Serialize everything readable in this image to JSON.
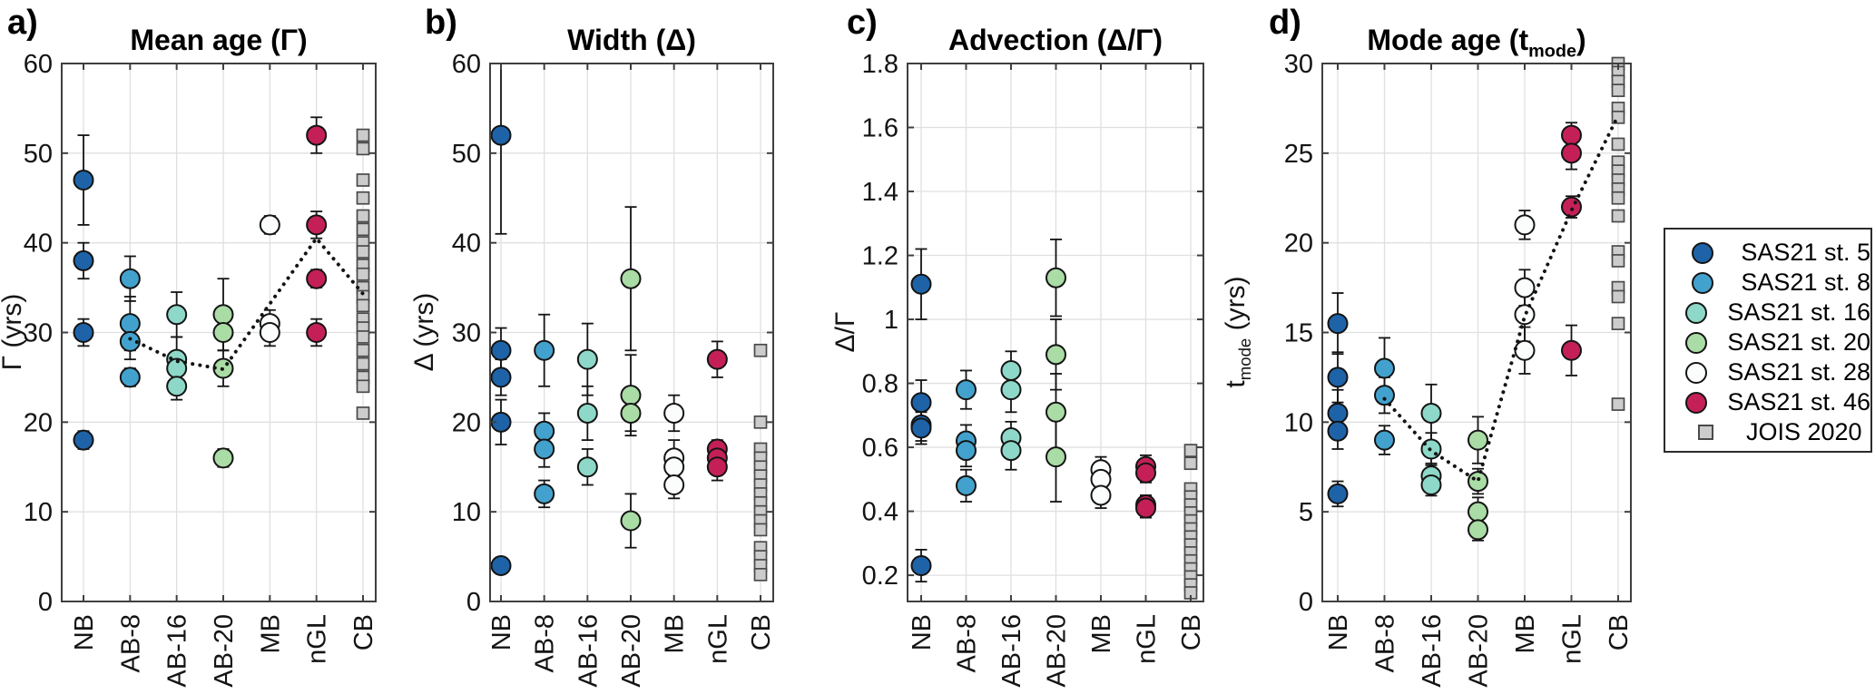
{
  "figure_colors": {
    "background": "#ffffff",
    "axis": "#3f3f3f",
    "grid": "#e0e0e0",
    "marker_edge": "#141414",
    "square_edge": "#4a4a4a",
    "trend": "#141414",
    "tick_text": "#141414"
  },
  "legend": {
    "items": [
      {
        "label": "SAS21 st. 5",
        "marker": "circle",
        "color": "#1e63a8"
      },
      {
        "label": "SAS21 st. 8",
        "marker": "circle",
        "color": "#43a2cd"
      },
      {
        "label": "SAS21 st. 16",
        "marker": "circle",
        "color": "#8dd8c8"
      },
      {
        "label": "SAS21 st. 20",
        "marker": "circle",
        "color": "#aadca5"
      },
      {
        "label": "SAS21 st. 28",
        "marker": "circle",
        "color": "#fbfdfd"
      },
      {
        "label": "SAS21 st. 46",
        "marker": "circle",
        "color": "#c42057"
      },
      {
        "label": "JOIS 2020",
        "marker": "square",
        "color": "#cccccc"
      }
    ]
  },
  "chart_data": [
    {
      "panel": "a",
      "letter": "a)",
      "type": "scatter",
      "title": {
        "pre": "Mean age (Γ)",
        "sub": "",
        "post": ""
      },
      "ylabel": {
        "pre": "Γ (yrs)",
        "sub": "",
        "post": ""
      },
      "ylim": [
        0,
        60
      ],
      "yticks": [
        {
          "v": 0,
          "label": "0"
        },
        {
          "v": 10,
          "label": "10"
        },
        {
          "v": 20,
          "label": "20"
        },
        {
          "v": 30,
          "label": "30"
        },
        {
          "v": 40,
          "label": "40"
        },
        {
          "v": 50,
          "label": "50"
        },
        {
          "v": 60,
          "label": "60"
        }
      ],
      "categories": [
        "NB",
        "AB-8",
        "AB-16",
        "AB-20",
        "MB",
        "nGL",
        "CB"
      ],
      "groups": [
        {
          "station": "SAS21 st. 5",
          "category": "NB",
          "values": [
            47,
            38,
            30,
            18
          ],
          "errors": [
            5,
            2,
            1.5,
            1
          ]
        },
        {
          "station": "SAS21 st. 8",
          "category": "AB-8",
          "values": [
            36,
            31,
            29,
            25
          ],
          "errors": [
            2.5,
            3,
            2,
            1
          ]
        },
        {
          "station": "SAS21 st. 16",
          "category": "AB-16",
          "values": [
            32,
            27,
            26,
            24
          ],
          "errors": [
            2.5,
            2.5,
            1.5,
            1.5
          ]
        },
        {
          "station": "SAS21 st. 20",
          "category": "AB-20",
          "values": [
            32,
            30,
            26,
            16
          ],
          "errors": [
            4,
            2,
            2,
            1
          ]
        },
        {
          "station": "SAS21 st. 28",
          "category": "MB",
          "values": [
            42,
            31,
            30
          ],
          "errors": [
            1,
            1.5,
            1.5
          ]
        },
        {
          "station": "SAS21 st. 46",
          "category": "nGL",
          "values": [
            52,
            42,
            36,
            30
          ],
          "errors": [
            2,
            1.5,
            1,
            1.5
          ]
        },
        {
          "station": "JOIS 2020",
          "category": "CB",
          "values": [
            52,
            50.5,
            47,
            45,
            43,
            41.5,
            40,
            39,
            37.5,
            36.5,
            35,
            34,
            33,
            31.5,
            30.5,
            29.5,
            28,
            26.5,
            25,
            24,
            21
          ],
          "errors": null
        }
      ],
      "trend": {
        "categories": [
          "AB-8",
          "AB-16",
          "AB-20",
          "nGL",
          "CB"
        ],
        "values": [
          29.3,
          26.8,
          25.9,
          40.5,
          34.3
        ]
      }
    },
    {
      "panel": "b",
      "letter": "b)",
      "type": "scatter",
      "title": {
        "pre": "Width (Δ)",
        "sub": "",
        "post": ""
      },
      "ylabel": {
        "pre": "Δ (yrs)",
        "sub": "",
        "post": ""
      },
      "ylim": [
        0,
        60
      ],
      "yticks": [
        {
          "v": 0,
          "label": "0"
        },
        {
          "v": 10,
          "label": "10"
        },
        {
          "v": 20,
          "label": "20"
        },
        {
          "v": 30,
          "label": "30"
        },
        {
          "v": 40,
          "label": "40"
        },
        {
          "v": 50,
          "label": "50"
        },
        {
          "v": 60,
          "label": "60"
        }
      ],
      "categories": [
        "NB",
        "AB-8",
        "AB-16",
        "AB-20",
        "MB",
        "nGL",
        "CB"
      ],
      "groups": [
        {
          "station": "SAS21 st. 5",
          "category": "NB",
          "values": [
            52,
            28,
            25,
            20,
            4
          ],
          "errors": [
            11,
            2.5,
            2,
            2.5,
            0.8
          ]
        },
        {
          "station": "SAS21 st. 8",
          "category": "AB-8",
          "values": [
            28,
            19,
            17,
            12
          ],
          "errors": [
            4,
            2,
            2,
            1.5
          ]
        },
        {
          "station": "SAS21 st. 16",
          "category": "AB-16",
          "values": [
            27,
            21,
            15
          ],
          "errors": [
            4,
            3,
            2
          ]
        },
        {
          "station": "SAS21 st. 20",
          "category": "AB-20",
          "values": [
            36,
            23,
            21,
            9
          ],
          "errors": [
            8,
            4.5,
            2,
            3
          ]
        },
        {
          "station": "SAS21 st. 28",
          "category": "MB",
          "values": [
            21,
            16,
            15,
            13
          ],
          "errors": [
            2,
            2,
            1,
            1.5
          ]
        },
        {
          "station": "SAS21 st. 46",
          "category": "nGL",
          "values": [
            27,
            17,
            16,
            15
          ],
          "errors": [
            2,
            1,
            1,
            1.5
          ]
        },
        {
          "station": "JOIS 2020",
          "category": "CB",
          "values": [
            28,
            20,
            17,
            16,
            15,
            14,
            13,
            12,
            11,
            10,
            9,
            8,
            6,
            5,
            4,
            3
          ],
          "errors": null
        }
      ],
      "trend": null
    },
    {
      "panel": "c",
      "letter": "c)",
      "type": "scatter",
      "title": {
        "pre": "Advection (Δ/Γ)",
        "sub": "",
        "post": ""
      },
      "ylabel": {
        "pre": "Δ/Γ",
        "sub": "",
        "post": ""
      },
      "ylim": [
        0.118,
        1.8
      ],
      "yticks": [
        {
          "v": 0.2,
          "label": "0.2"
        },
        {
          "v": 0.4,
          "label": "0.4"
        },
        {
          "v": 0.6,
          "label": "0.6"
        },
        {
          "v": 0.8,
          "label": "0.8"
        },
        {
          "v": 1,
          "label": "1"
        },
        {
          "v": 1.2,
          "label": "1.2"
        },
        {
          "v": 1.4,
          "label": "1.4"
        },
        {
          "v": 1.6,
          "label": "1.6"
        },
        {
          "v": 1.8,
          "label": "1.8"
        }
      ],
      "categories": [
        "NB",
        "AB-8",
        "AB-16",
        "AB-20",
        "MB",
        "nGL",
        "CB"
      ],
      "groups": [
        {
          "station": "SAS21 st. 5",
          "category": "NB",
          "values": [
            1.11,
            0.74,
            0.67,
            0.66,
            0.23
          ],
          "errors": [
            0.11,
            0.07,
            0.05,
            0.05,
            0.05
          ]
        },
        {
          "station": "SAS21 st. 8",
          "category": "AB-8",
          "values": [
            0.78,
            0.62,
            0.59,
            0.48
          ],
          "errors": [
            0.06,
            0.05,
            0.05,
            0.05
          ]
        },
        {
          "station": "SAS21 st. 16",
          "category": "AB-16",
          "values": [
            0.84,
            0.78,
            0.63,
            0.59
          ],
          "errors": [
            0.06,
            0.07,
            0.05,
            0.06
          ]
        },
        {
          "station": "SAS21 st. 20",
          "category": "AB-20",
          "values": [
            1.13,
            0.89,
            0.71,
            0.57
          ],
          "errors": [
            0.12,
            0.11,
            0.12,
            0.14
          ]
        },
        {
          "station": "SAS21 st. 28",
          "category": "MB",
          "values": [
            0.53,
            0.5,
            0.45
          ],
          "errors": [
            0.04,
            0.04,
            0.04
          ]
        },
        {
          "station": "SAS21 st. 46",
          "category": "nGL",
          "values": [
            0.54,
            0.52,
            0.42,
            0.41
          ],
          "errors": [
            0.035,
            0.03,
            0.03,
            0.03
          ]
        },
        {
          "station": "JOIS 2020",
          "category": "CB",
          "values": [
            0.59,
            0.55,
            0.47,
            0.445,
            0.42,
            0.395,
            0.37,
            0.345,
            0.32,
            0.295,
            0.27,
            0.245,
            0.22,
            0.195,
            0.17,
            0.145
          ],
          "errors": null
        }
      ],
      "trend": null
    },
    {
      "panel": "d",
      "letter": "d)",
      "type": "scatter",
      "title": {
        "pre": "Mode age (t",
        "sub": "mode",
        "post": ")"
      },
      "ylabel": {
        "pre": "t",
        "sub": "mode",
        "post": " (yrs)"
      },
      "ylim": [
        0,
        30
      ],
      "yticks": [
        {
          "v": 0,
          "label": "0"
        },
        {
          "v": 5,
          "label": "5"
        },
        {
          "v": 10,
          "label": "10"
        },
        {
          "v": 15,
          "label": "15"
        },
        {
          "v": 20,
          "label": "20"
        },
        {
          "v": 25,
          "label": "25"
        },
        {
          "v": 30,
          "label": "30"
        }
      ],
      "categories": [
        "NB",
        "AB-8",
        "AB-16",
        "AB-20",
        "MB",
        "nGL",
        "CB"
      ],
      "groups": [
        {
          "station": "SAS21 st. 5",
          "category": "NB",
          "values": [
            15.5,
            12.5,
            10.5,
            9.5,
            6
          ],
          "errors": [
            1.7,
            1.4,
            1.3,
            1,
            0.7
          ]
        },
        {
          "station": "SAS21 st. 8",
          "category": "AB-8",
          "values": [
            13,
            11.5,
            9
          ],
          "errors": [
            1.7,
            1,
            0.8
          ]
        },
        {
          "station": "SAS21 st. 16",
          "category": "AB-16",
          "values": [
            10.5,
            8.5,
            7,
            6.5
          ],
          "errors": [
            1.6,
            0.9,
            0.7,
            0.6
          ]
        },
        {
          "station": "SAS21 st. 20",
          "category": "AB-20",
          "values": [
            9,
            6.7,
            5,
            4
          ],
          "errors": [
            1.3,
            0.7,
            0.8,
            0.6
          ]
        },
        {
          "station": "SAS21 st. 28",
          "category": "MB",
          "values": [
            21,
            17.5,
            16,
            14
          ],
          "errors": [
            0.8,
            1,
            1.5,
            1.3
          ]
        },
        {
          "station": "SAS21 st. 46",
          "category": "nGL",
          "values": [
            26,
            25,
            22,
            14
          ],
          "errors": [
            0.7,
            0.9,
            0.6,
            1.4
          ]
        },
        {
          "station": "JOIS 2020",
          "category": "CB",
          "values": [
            30,
            29.5,
            29,
            28.5,
            27.5,
            27,
            25.5,
            24.5,
            24,
            23.5,
            23,
            22.5,
            21.5,
            19.5,
            19,
            17.5,
            17,
            15.5,
            11
          ],
          "errors": null
        }
      ],
      "trend": {
        "categories": [
          "AB-8",
          "AB-16",
          "AB-20",
          "MB",
          "nGL",
          "CB"
        ],
        "values": [
          11.3,
          8.4,
          6.7,
          15.9,
          21.8,
          27.1
        ]
      }
    }
  ]
}
